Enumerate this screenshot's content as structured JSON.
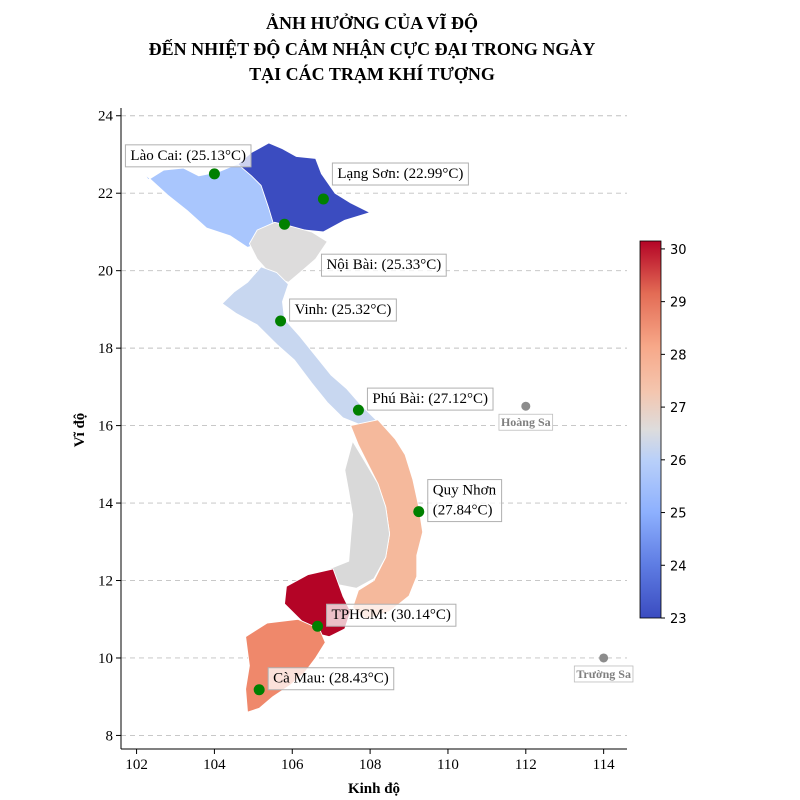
{
  "title_lines": [
    "ẢNH HƯỞNG CỦA VĨ ĐỘ",
    "ĐẾN NHIỆT ĐỘ CẢM NHẬN CỰC ĐẠI TRONG NGÀY",
    "TẠI CÁC TRẠM KHÍ TƯỢNG"
  ],
  "axes": {
    "xlabel": "Kinh độ",
    "ylabel": "Vĩ độ",
    "xlim": [
      101.6,
      114.6
    ],
    "ylim": [
      7.65,
      24.2
    ],
    "xticks": [
      102,
      104,
      106,
      108,
      110,
      112,
      114
    ],
    "yticks": [
      8,
      10,
      12,
      14,
      16,
      18,
      20,
      22,
      24
    ],
    "grid": "horizontal dashed"
  },
  "colorbar": {
    "min": 23,
    "max": 30.15,
    "ticks": [
      23,
      24,
      25,
      26,
      27,
      28,
      29,
      30
    ],
    "colormap": "coolwarm"
  },
  "stations": [
    {
      "name": "Lào Cai",
      "label": "Lào Cai: (25.13°C)",
      "lon": 104.0,
      "lat": 22.5,
      "temp": 25.13,
      "label_pos": "top-left"
    },
    {
      "name": "Lạng Sơn",
      "label": "Lạng Sơn: (22.99°C)",
      "lon": 106.8,
      "lat": 21.85,
      "temp": 22.99,
      "label_pos": "top-right"
    },
    {
      "name": "Nội Bài",
      "label": "Nội Bài: (25.33°C)",
      "lon": 105.8,
      "lat": 21.2,
      "temp": 25.33,
      "label_pos": "bottom-right"
    },
    {
      "name": "Vinh",
      "label": "Vinh: (25.32°C)",
      "lon": 105.7,
      "lat": 18.7,
      "temp": 25.32,
      "label_pos": "right"
    },
    {
      "name": "Phú Bài",
      "label": "Phú Bài: (27.12°C)",
      "lon": 107.7,
      "lat": 16.4,
      "temp": 27.12,
      "label_pos": "right"
    },
    {
      "name": "Quy Nhơn",
      "label": "Quy Nhơn\n(27.84°C)",
      "lon": 109.25,
      "lat": 13.78,
      "temp": 27.84,
      "label_pos": "right"
    },
    {
      "name": "TPHCM",
      "label": "TPHCM: (30.14°C)",
      "lon": 106.65,
      "lat": 10.82,
      "temp": 30.14,
      "label_pos": "right"
    },
    {
      "name": "Cà Mau",
      "label": "Cà Mau: (28.43°C)",
      "lon": 105.15,
      "lat": 9.18,
      "temp": 28.43,
      "label_pos": "right"
    }
  ],
  "islands": [
    {
      "name": "Hoàng Sa",
      "lon": 112.0,
      "lat": 16.5
    },
    {
      "name": "Trường Sa",
      "lon": 114.0,
      "lat": 10.0
    }
  ],
  "regions": [
    {
      "name": "northwest",
      "temp": 25.13,
      "color": "#a9c6fd",
      "polygon": [
        [
          104.1,
          22.55
        ],
        [
          103.6,
          22.45
        ],
        [
          103.2,
          22.65
        ],
        [
          102.7,
          22.6
        ],
        [
          102.3,
          22.35
        ],
        [
          102.2,
          22.5
        ],
        [
          102.8,
          21.95
        ],
        [
          103.3,
          21.55
        ],
        [
          103.8,
          21.1
        ],
        [
          104.4,
          20.9
        ],
        [
          104.85,
          20.6
        ],
        [
          105.3,
          20.75
        ],
        [
          105.55,
          21.2
        ],
        [
          105.45,
          22.0
        ],
        [
          105.2,
          22.6
        ],
        [
          104.7,
          22.8
        ]
      ]
    },
    {
      "name": "northeast",
      "temp": 22.99,
      "color": "#3b4cc0",
      "polygon": [
        [
          104.6,
          22.75
        ],
        [
          104.95,
          23.05
        ],
        [
          105.4,
          23.3
        ],
        [
          105.75,
          23.15
        ],
        [
          106.1,
          22.95
        ],
        [
          106.6,
          22.9
        ],
        [
          106.75,
          22.5
        ],
        [
          107.1,
          22.0
        ],
        [
          107.5,
          21.75
        ],
        [
          108.0,
          21.5
        ],
        [
          107.35,
          21.3
        ],
        [
          106.8,
          21.0
        ],
        [
          106.3,
          21.05
        ],
        [
          105.9,
          20.9
        ],
        [
          105.55,
          21.1
        ],
        [
          105.4,
          21.6
        ],
        [
          105.2,
          22.2
        ],
        [
          104.95,
          22.45
        ]
      ]
    },
    {
      "name": "red-river-delta",
      "temp": 25.33,
      "color": "#dddcdc",
      "polygon": [
        [
          105.1,
          21.05
        ],
        [
          105.55,
          21.25
        ],
        [
          105.95,
          21.15
        ],
        [
          106.5,
          21.0
        ],
        [
          106.9,
          20.75
        ],
        [
          106.6,
          20.3
        ],
        [
          106.2,
          19.95
        ],
        [
          105.9,
          19.7
        ],
        [
          105.5,
          19.85
        ],
        [
          105.1,
          20.3
        ],
        [
          104.9,
          20.7
        ]
      ]
    },
    {
      "name": "north-central",
      "temp": 25.32,
      "color": "#c8d7f0",
      "polygon": [
        [
          105.2,
          20.1
        ],
        [
          105.6,
          19.95
        ],
        [
          105.9,
          19.65
        ],
        [
          105.75,
          19.2
        ],
        [
          105.8,
          18.75
        ],
        [
          106.2,
          18.3
        ],
        [
          106.6,
          17.8
        ],
        [
          107.0,
          17.3
        ],
        [
          107.4,
          16.95
        ],
        [
          107.75,
          16.55
        ],
        [
          108.2,
          16.1
        ],
        [
          107.8,
          16.0
        ],
        [
          107.3,
          16.2
        ],
        [
          106.9,
          16.6
        ],
        [
          106.5,
          17.1
        ],
        [
          106.05,
          17.7
        ],
        [
          105.6,
          18.1
        ],
        [
          105.1,
          18.6
        ],
        [
          104.55,
          18.9
        ],
        [
          104.2,
          19.15
        ],
        [
          104.5,
          19.45
        ],
        [
          104.85,
          19.7
        ]
      ]
    },
    {
      "name": "south-central-coast",
      "temp": 27.84,
      "color": "#f5b99c",
      "polygon": [
        [
          108.2,
          16.15
        ],
        [
          108.65,
          15.65
        ],
        [
          108.9,
          15.25
        ],
        [
          109.1,
          14.6
        ],
        [
          109.25,
          13.9
        ],
        [
          109.35,
          13.25
        ],
        [
          109.2,
          12.65
        ],
        [
          109.2,
          12.1
        ],
        [
          109.0,
          11.6
        ],
        [
          108.5,
          11.2
        ],
        [
          107.9,
          11.0
        ],
        [
          107.55,
          11.3
        ],
        [
          107.7,
          11.75
        ],
        [
          108.1,
          12.0
        ],
        [
          108.4,
          12.6
        ],
        [
          108.5,
          13.2
        ],
        [
          108.4,
          13.9
        ],
        [
          108.2,
          14.5
        ],
        [
          107.9,
          15.1
        ],
        [
          107.7,
          15.5
        ],
        [
          107.5,
          16.0
        ]
      ]
    },
    {
      "name": "central-highlands",
      "temp": 26.8,
      "color": "#d9d9d9",
      "polygon": [
        [
          107.55,
          15.6
        ],
        [
          107.85,
          15.1
        ],
        [
          108.2,
          14.5
        ],
        [
          108.4,
          13.9
        ],
        [
          108.5,
          13.2
        ],
        [
          108.4,
          12.6
        ],
        [
          108.1,
          12.05
        ],
        [
          107.65,
          11.8
        ],
        [
          107.15,
          11.9
        ],
        [
          106.95,
          12.3
        ],
        [
          107.45,
          12.5
        ],
        [
          107.5,
          13.1
        ],
        [
          107.55,
          13.7
        ],
        [
          107.45,
          14.3
        ],
        [
          107.35,
          14.85
        ]
      ]
    },
    {
      "name": "southeast",
      "temp": 30.14,
      "color": "#b40426",
      "polygon": [
        [
          107.05,
          12.3
        ],
        [
          106.4,
          12.15
        ],
        [
          105.85,
          11.85
        ],
        [
          105.8,
          11.4
        ],
        [
          106.15,
          11.05
        ],
        [
          106.55,
          10.65
        ],
        [
          106.95,
          10.55
        ],
        [
          107.35,
          10.75
        ],
        [
          107.5,
          11.2
        ],
        [
          107.3,
          11.6
        ]
      ]
    },
    {
      "name": "mekong-delta",
      "temp": 28.43,
      "color": "#ef886b",
      "polygon": [
        [
          104.8,
          10.55
        ],
        [
          105.35,
          10.9
        ],
        [
          106.15,
          11.0
        ],
        [
          106.7,
          10.75
        ],
        [
          106.85,
          10.4
        ],
        [
          106.6,
          10.0
        ],
        [
          106.3,
          9.6
        ],
        [
          105.95,
          9.3
        ],
        [
          105.5,
          9.0
        ],
        [
          105.15,
          8.7
        ],
        [
          104.85,
          8.6
        ],
        [
          104.8,
          9.2
        ],
        [
          104.9,
          9.8
        ]
      ]
    }
  ]
}
